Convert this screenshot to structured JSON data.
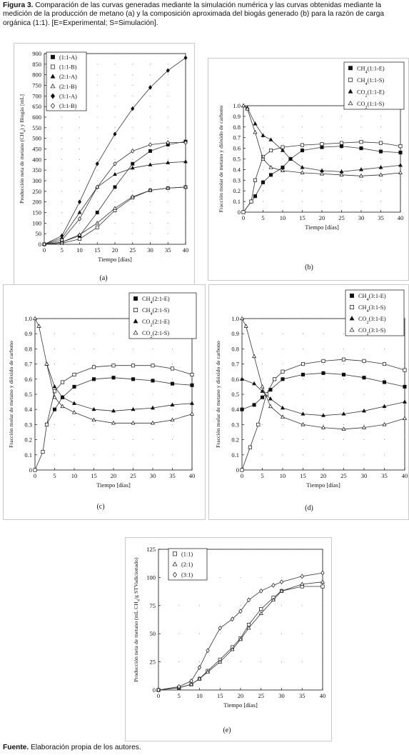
{
  "caption": {
    "label": "Figura 3.",
    "text": " Comparación de las curvas generadas mediante la simulación numérica y las curvas obtenidas mediante la medición de la producción de metano (a) y la composición aproximada del biogás generado (b) para la razón de carga orgánica (1:1). [E=Experimental; S=Simulación]."
  },
  "footer": {
    "label": "Fuente.",
    "text": " Elaboración propia de los autores."
  },
  "chart_data": [
    {
      "panel": "(a)",
      "type": "line",
      "xlabel": "Tiempo [días]",
      "ylabel": "Producción neta de metano (CH4) y Biogás [mL]",
      "xlim": [
        0,
        40
      ],
      "ylim": [
        0,
        900
      ],
      "xticks": [
        "0",
        "5",
        "10",
        "15",
        "20",
        "25",
        "30",
        "35",
        "40"
      ],
      "yticks": [
        "0",
        "50",
        "100",
        "150",
        "200",
        "250",
        "300",
        "350",
        "400",
        "450",
        "500",
        "550",
        "600",
        "650",
        "700",
        "750",
        "800",
        "850",
        "900"
      ],
      "grid": "dotted",
      "legend_position": "top-left",
      "series": [
        {
          "name": "(1:1-A)",
          "marker": "square-filled",
          "x": [
            0,
            5,
            10,
            15,
            20,
            25,
            30,
            35,
            40
          ],
          "y": [
            0,
            10,
            40,
            150,
            270,
            380,
            440,
            470,
            485
          ]
        },
        {
          "name": "(1:1-B)",
          "marker": "square-open",
          "x": [
            0,
            5,
            10,
            15,
            20,
            25,
            30,
            35,
            40
          ],
          "y": [
            0,
            5,
            25,
            80,
            160,
            220,
            255,
            265,
            270
          ]
        },
        {
          "name": "(2:1-A)",
          "marker": "triangle-filled",
          "x": [
            0,
            5,
            10,
            15,
            20,
            25,
            30,
            35,
            40
          ],
          "y": [
            0,
            30,
            150,
            270,
            330,
            360,
            375,
            385,
            390
          ]
        },
        {
          "name": "(2:1-B)",
          "marker": "triangle-open",
          "x": [
            0,
            5,
            10,
            15,
            20,
            25,
            30,
            35,
            40
          ],
          "y": [
            0,
            10,
            45,
            100,
            170,
            225,
            255,
            265,
            270
          ]
        },
        {
          "name": "(3:1-A)",
          "marker": "diamond-filled",
          "x": [
            0,
            5,
            10,
            15,
            20,
            25,
            30,
            35,
            40
          ],
          "y": [
            0,
            40,
            200,
            380,
            520,
            640,
            740,
            820,
            880
          ]
        },
        {
          "name": "(3:1-B)",
          "marker": "diamond-open",
          "x": [
            0,
            5,
            10,
            15,
            20,
            25,
            30,
            35,
            40
          ],
          "y": [
            0,
            20,
            120,
            270,
            380,
            440,
            470,
            480,
            480
          ]
        }
      ]
    },
    {
      "panel": "(b)",
      "type": "line",
      "xlabel": "Tiempo [días]",
      "ylabel": "Fracción molar de metano y dióxido de carbono",
      "xlim": [
        0,
        40
      ],
      "ylim": [
        0,
        1
      ],
      "xticks": [
        "0",
        "5",
        "10",
        "15",
        "20",
        "25",
        "30",
        "35",
        "40"
      ],
      "yticks": [
        "0",
        "0.1",
        "0.2",
        "0.3",
        "0.4",
        "0.5",
        "0.6",
        "0.7",
        "0.8",
        "0.9",
        "1.0"
      ],
      "grid": "dotted",
      "legend_position": "top-right",
      "series": [
        {
          "name": "CH4(1:1-E)",
          "marker": "square-filled",
          "x": [
            0,
            2,
            3,
            5,
            7,
            10,
            12,
            15,
            20,
            25,
            30,
            35,
            40
          ],
          "y": [
            0,
            0.1,
            0.15,
            0.28,
            0.35,
            0.42,
            0.5,
            0.58,
            0.61,
            0.62,
            0.6,
            0.57,
            0.56
          ]
        },
        {
          "name": "CH4(1:1-S)",
          "marker": "square-open",
          "x": [
            0,
            2,
            3,
            5,
            7,
            10,
            15,
            20,
            25,
            30,
            35,
            40
          ],
          "y": [
            0,
            0.1,
            0.3,
            0.52,
            0.58,
            0.61,
            0.63,
            0.64,
            0.65,
            0.66,
            0.65,
            0.62
          ]
        },
        {
          "name": "CO2(1:1-E)",
          "marker": "triangle-filled",
          "x": [
            0,
            1,
            3,
            5,
            7,
            10,
            12,
            15,
            20,
            25,
            30,
            35,
            40
          ],
          "y": [
            1.0,
            0.98,
            0.83,
            0.72,
            0.68,
            0.58,
            0.5,
            0.42,
            0.39,
            0.38,
            0.4,
            0.42,
            0.44
          ]
        },
        {
          "name": "CO2(1:1-S)",
          "marker": "triangle-open",
          "x": [
            0,
            1,
            3,
            5,
            7,
            10,
            15,
            20,
            25,
            30,
            35,
            40
          ],
          "y": [
            1.0,
            0.97,
            0.75,
            0.5,
            0.42,
            0.39,
            0.37,
            0.36,
            0.35,
            0.34,
            0.35,
            0.37
          ]
        }
      ]
    },
    {
      "panel": "(c)",
      "type": "line",
      "xlabel": "Tiempo [días]",
      "ylabel": "Fracción molar de metano y dióxido de carbono",
      "xlim": [
        0,
        40
      ],
      "ylim": [
        0,
        1
      ],
      "xticks": [
        "0",
        "5",
        "10",
        "15",
        "20",
        "25",
        "30",
        "35",
        "40"
      ],
      "yticks": [
        "0",
        "0.1",
        "0.2",
        "0.3",
        "0.4",
        "0.5",
        "0.6",
        "0.7",
        "0.8",
        "0.9",
        "1.0"
      ],
      "grid": "dotted",
      "legend_position": "top-right",
      "series": [
        {
          "name": "CH4(2:1-E)",
          "marker": "square-filled",
          "x": [
            3,
            5,
            7,
            10,
            15,
            20,
            25,
            30,
            35,
            40
          ],
          "y": [
            0.3,
            0.4,
            0.48,
            0.55,
            0.6,
            0.61,
            0.6,
            0.59,
            0.57,
            0.56
          ]
        },
        {
          "name": "CH4(2:1-S)",
          "marker": "square-open",
          "x": [
            0,
            2,
            3,
            5,
            7,
            10,
            15,
            20,
            25,
            30,
            35,
            40
          ],
          "y": [
            0,
            0.12,
            0.3,
            0.52,
            0.58,
            0.63,
            0.68,
            0.69,
            0.69,
            0.69,
            0.67,
            0.63
          ]
        },
        {
          "name": "CO2(2:1-E)",
          "marker": "triangle-filled",
          "x": [
            3,
            5,
            7,
            10,
            15,
            20,
            25,
            30,
            35,
            40
          ],
          "y": [
            0.7,
            0.55,
            0.48,
            0.44,
            0.4,
            0.39,
            0.4,
            0.41,
            0.43,
            0.44
          ]
        },
        {
          "name": "CO2(2:1-S)",
          "marker": "triangle-open",
          "x": [
            0,
            1,
            3,
            5,
            7,
            10,
            15,
            20,
            25,
            30,
            35,
            40
          ],
          "y": [
            1.0,
            0.95,
            0.7,
            0.48,
            0.42,
            0.38,
            0.33,
            0.31,
            0.31,
            0.31,
            0.33,
            0.37
          ]
        }
      ]
    },
    {
      "panel": "(d)",
      "type": "line",
      "xlabel": "Tiempo [días]",
      "ylabel": "Fracción molar de metano y dióxido de carbono",
      "xlim": [
        0,
        40
      ],
      "ylim": [
        0,
        1
      ],
      "xticks": [
        "0",
        "5",
        "10",
        "15",
        "20",
        "25",
        "30",
        "35",
        "40"
      ],
      "yticks": [
        "0",
        "0.1",
        "0.2",
        "0.3",
        "0.4",
        "0.5",
        "0.6",
        "0.7",
        "0.8",
        "0.9",
        "1.0"
      ],
      "grid": "dotted",
      "legend_position": "top-right",
      "series": [
        {
          "name": "CH4(3:1-E)",
          "marker": "square-filled",
          "x": [
            0,
            3,
            5,
            7,
            10,
            15,
            20,
            25,
            30,
            35,
            40
          ],
          "y": [
            0.4,
            0.43,
            0.48,
            0.53,
            0.6,
            0.63,
            0.64,
            0.63,
            0.61,
            0.58,
            0.55
          ]
        },
        {
          "name": "CH4(3:1-S)",
          "marker": "square-open",
          "x": [
            0,
            2,
            4,
            6,
            8,
            10,
            15,
            20,
            25,
            30,
            35,
            40
          ],
          "y": [
            0,
            0.15,
            0.3,
            0.5,
            0.6,
            0.65,
            0.7,
            0.72,
            0.73,
            0.72,
            0.7,
            0.66
          ]
        },
        {
          "name": "CO2(3:1-E)",
          "marker": "triangle-filled",
          "x": [
            0,
            3,
            5,
            7,
            10,
            15,
            20,
            25,
            30,
            35,
            40
          ],
          "y": [
            0.6,
            0.57,
            0.52,
            0.47,
            0.41,
            0.37,
            0.36,
            0.37,
            0.39,
            0.42,
            0.45
          ]
        },
        {
          "name": "CO2(3:1-S)",
          "marker": "triangle-open",
          "x": [
            0,
            1,
            3,
            5,
            7,
            10,
            15,
            20,
            25,
            30,
            35,
            40
          ],
          "y": [
            1.0,
            0.95,
            0.75,
            0.55,
            0.42,
            0.35,
            0.3,
            0.28,
            0.27,
            0.28,
            0.3,
            0.34
          ]
        }
      ]
    },
    {
      "panel": "(e)",
      "type": "line",
      "xlabel": "Tiempo [días]",
      "ylabel": "Producción neta de metano (mL CH4/g STVadicionado)",
      "xlim": [
        0,
        40
      ],
      "ylim": [
        0,
        125
      ],
      "xticks": [
        "0",
        "5",
        "10",
        "15",
        "20",
        "25",
        "30",
        "35",
        "40"
      ],
      "yticks": [
        "0",
        "25",
        "50",
        "75",
        "100",
        "125"
      ],
      "grid": "dotted",
      "legend_position": "top-left",
      "series": [
        {
          "name": "(1:1)",
          "marker": "square-open",
          "x": [
            0,
            5,
            8,
            10,
            12,
            15,
            18,
            20,
            22,
            25,
            28,
            30,
            35,
            40
          ],
          "y": [
            0,
            2,
            5,
            10,
            17,
            27,
            38,
            46,
            58,
            72,
            82,
            88,
            92,
            92
          ]
        },
        {
          "name": "(2:1)",
          "marker": "triangle-open",
          "x": [
            0,
            5,
            8,
            10,
            12,
            15,
            18,
            20,
            22,
            25,
            28,
            30,
            35,
            40
          ],
          "y": [
            0,
            2,
            5,
            10,
            16,
            25,
            36,
            45,
            55,
            68,
            80,
            88,
            94,
            96
          ]
        },
        {
          "name": "(3:1)",
          "marker": "diamond-open",
          "x": [
            0,
            5,
            8,
            10,
            12,
            15,
            18,
            20,
            22,
            25,
            28,
            30,
            35,
            40
          ],
          "y": [
            0,
            3,
            8,
            20,
            35,
            55,
            63,
            70,
            80,
            88,
            93,
            96,
            101,
            104
          ]
        }
      ]
    }
  ]
}
